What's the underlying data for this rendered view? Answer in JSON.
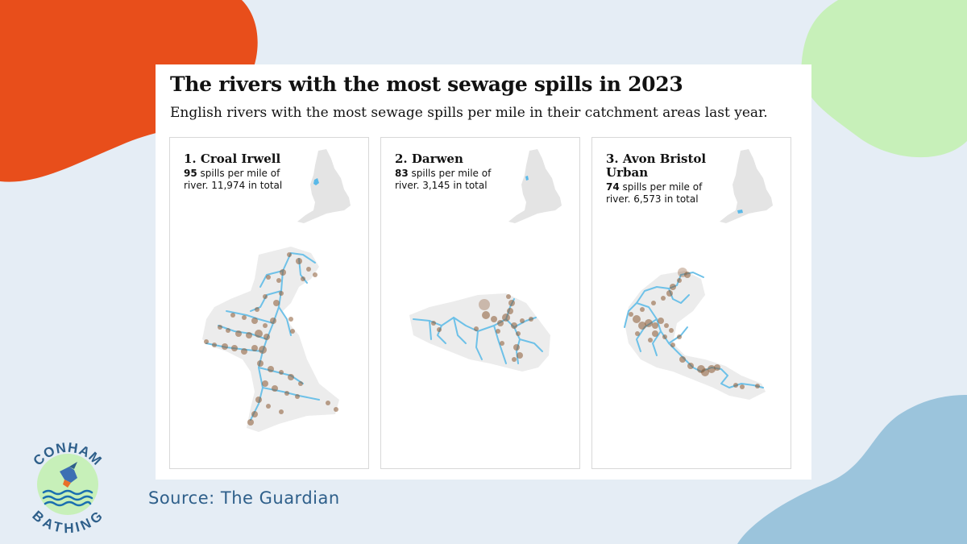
{
  "colors": {
    "background": "#e5edf5",
    "orange": "#e84e1b",
    "green": "#c7f0b9",
    "blue": "#9bc4dc",
    "river": "#6ec1e8",
    "spill": "#8b5a33",
    "catchment": "#ececec",
    "source_text": "#2e5f8a"
  },
  "graphic": {
    "title": "The rivers with the most sewage spills in 2023",
    "subtitle": "English rivers with the most sewage spills per mile in their catchment areas last year."
  },
  "panels": [
    {
      "title": "1. Croal Irwell",
      "spills_per_mile": "95",
      "desc_1": " spills per mile of",
      "desc_2": "river. 11,974 in total",
      "map_icon": "england-map-icon"
    },
    {
      "title": "2. Darwen",
      "spills_per_mile": "83",
      "desc_1": " spills per mile of",
      "desc_2": "river. 3,145 in total",
      "map_icon": "england-map-icon"
    },
    {
      "title": "3. Avon Bristol Urban",
      "spills_per_mile": "74",
      "desc_1": " spills per mile of",
      "desc_2": "river. 6,573 in total",
      "map_icon": "england-map-icon"
    }
  ],
  "source": "Source: The Guardian",
  "logo": {
    "top_text": "CONHAM",
    "bottom_text": "BATHING",
    "icon": "kingfisher-icon"
  }
}
